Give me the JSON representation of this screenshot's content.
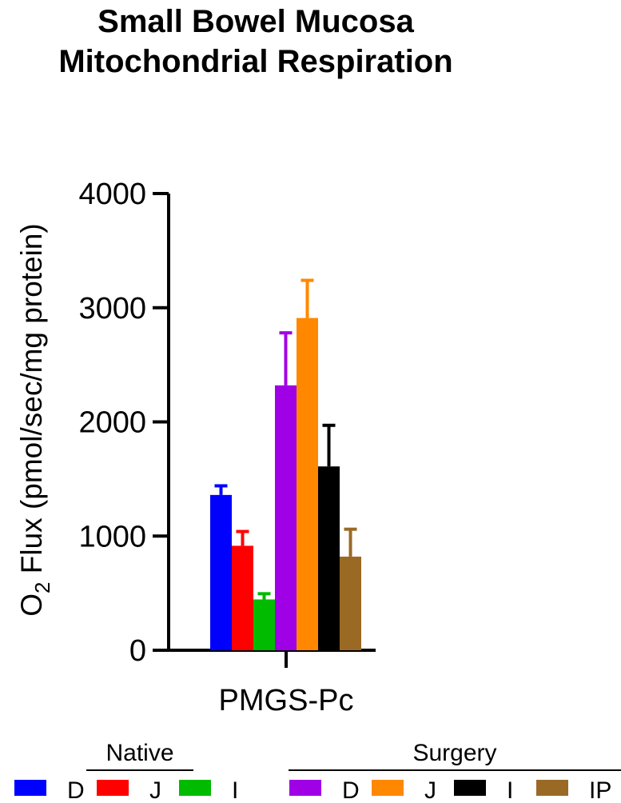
{
  "chart_data": {
    "type": "bar",
    "title_lines": [
      "Small Bowel Mucosa",
      "Mitochondrial Respiration"
    ],
    "ylabel_prefix": "O",
    "ylabel_subscript": "2",
    "ylabel_suffix": " Flux (pmol/sec/mg protein)",
    "ylim": [
      0,
      4000
    ],
    "yticks": [
      "0",
      "1000",
      "2000",
      "3000",
      "4000"
    ],
    "ytick_values": [
      0,
      1000,
      2000,
      3000,
      4000
    ],
    "x_category": "PMGS-Pc",
    "grid": false,
    "series": [
      {
        "group": "Native",
        "label": "D",
        "value": 1360,
        "error": 80,
        "color": "#0000ff"
      },
      {
        "group": "Native",
        "label": "J",
        "value": 915,
        "error": 125,
        "color": "#ff0000"
      },
      {
        "group": "Native",
        "label": "I",
        "value": 445,
        "error": 50,
        "color": "#00bb00"
      },
      {
        "group": "Surgery",
        "label": "D",
        "value": 2320,
        "error": 460,
        "color": "#a000e6"
      },
      {
        "group": "Surgery",
        "label": "J",
        "value": 2910,
        "error": 330,
        "color": "#ff8800"
      },
      {
        "group": "Surgery",
        "label": "I",
        "value": 1610,
        "error": 360,
        "color": "#000000"
      },
      {
        "group": "Surgery",
        "label": "IP",
        "value": 820,
        "error": 240,
        "color": "#9a6a25"
      }
    ],
    "legend_groups": [
      {
        "name": "Native",
        "labels": [
          "D",
          "J",
          "I"
        ],
        "colors": [
          "#0000ff",
          "#ff0000",
          "#00bb00"
        ]
      },
      {
        "name": "Surgery",
        "labels": [
          "D",
          "J",
          "I",
          "IP"
        ],
        "colors": [
          "#a000e6",
          "#ff8800",
          "#000000",
          "#9a6a25"
        ]
      }
    ]
  }
}
